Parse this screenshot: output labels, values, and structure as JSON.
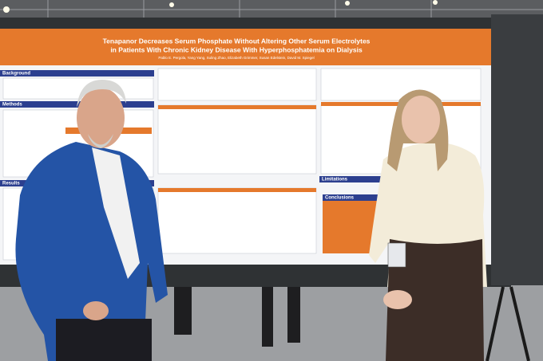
{
  "poster": {
    "title_line1": "Tenapanor Decreases Serum Phosphate Without Altering Other Serum Electrolytes",
    "title_line2": "in Patients With Chronic Kidney Disease With Hyperphosphatemia on Dialysis",
    "authors": "Pablo E. Pergola, Yang Yang, Suling Zhao, Elizabeth Grimmer, Susan Edelstein, David M. Spiegel",
    "sections": {
      "background": "Background",
      "methods": "Methods",
      "results": "Results",
      "limitations": "Limitations",
      "conclusions": "Conclusions"
    }
  }
}
